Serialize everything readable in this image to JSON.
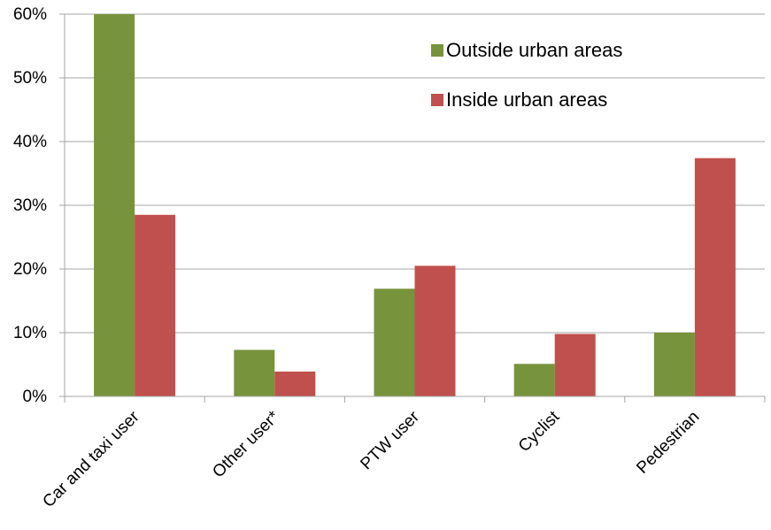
{
  "chart_data": {
    "type": "bar",
    "title": "",
    "xlabel": "",
    "ylabel": "",
    "categories": [
      "Car and taxi user",
      "Other user*",
      "PTW user",
      "Cyclist",
      "Pedestrian"
    ],
    "series": [
      {
        "name": "Outside urban areas",
        "color": "#77933c",
        "values": [
          60,
          7.3,
          16.9,
          5.1,
          10.0
        ]
      },
      {
        "name": "Inside urban areas",
        "color": "#c0504d",
        "values": [
          28.5,
          3.9,
          20.5,
          9.8,
          37.4
        ]
      }
    ],
    "ylim": [
      0,
      60
    ],
    "yticks": [
      0,
      10,
      20,
      30,
      40,
      50,
      60
    ],
    "ytick_labels": [
      "0%",
      "10%",
      "20%",
      "30%",
      "40%",
      "50%",
      "60%"
    ],
    "gridlines": true,
    "gridline_color": "#a6a6a6",
    "legend": "top-right, inside plot area"
  }
}
